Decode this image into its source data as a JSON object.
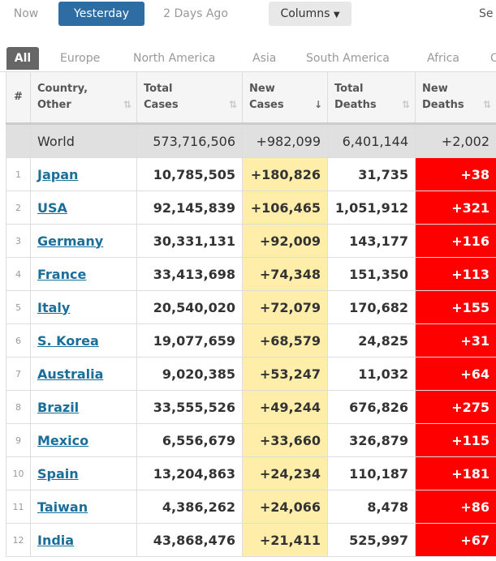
{
  "topbar": {
    "now": "Now",
    "yesterday": "Yesterday",
    "two_days": "2 Days Ago",
    "columns": "Columns",
    "search": "Se"
  },
  "tabs": [
    "All",
    "Europe",
    "North America",
    "Asia",
    "South America",
    "Africa",
    "O"
  ],
  "headers": {
    "index": "#",
    "country": [
      "Country,",
      "Other"
    ],
    "total_cases": [
      "Total",
      "Cases"
    ],
    "new_cases": [
      "New",
      "Cases"
    ],
    "total_deaths": [
      "Total",
      "Deaths"
    ],
    "new_deaths": [
      "New",
      "Deaths"
    ]
  },
  "world": {
    "name": "World",
    "total_cases": "573,716,506",
    "new_cases": "+982,099",
    "total_deaths": "6,401,144",
    "new_deaths": "+2,002"
  },
  "rows": [
    {
      "idx": "1",
      "name": "Japan",
      "total_cases": "10,785,505",
      "new_cases": "+180,826",
      "total_deaths": "31,735",
      "new_deaths": "+38"
    },
    {
      "idx": "2",
      "name": "USA",
      "total_cases": "92,145,839",
      "new_cases": "+106,465",
      "total_deaths": "1,051,912",
      "new_deaths": "+321"
    },
    {
      "idx": "3",
      "name": "Germany",
      "total_cases": "30,331,131",
      "new_cases": "+92,009",
      "total_deaths": "143,177",
      "new_deaths": "+116"
    },
    {
      "idx": "4",
      "name": "France",
      "total_cases": "33,413,698",
      "new_cases": "+74,348",
      "total_deaths": "151,350",
      "new_deaths": "+113"
    },
    {
      "idx": "5",
      "name": "Italy",
      "total_cases": "20,540,020",
      "new_cases": "+72,079",
      "total_deaths": "170,682",
      "new_deaths": "+155"
    },
    {
      "idx": "6",
      "name": "S. Korea",
      "total_cases": "19,077,659",
      "new_cases": "+68,579",
      "total_deaths": "24,825",
      "new_deaths": "+31"
    },
    {
      "idx": "7",
      "name": "Australia",
      "total_cases": "9,020,385",
      "new_cases": "+53,247",
      "total_deaths": "11,032",
      "new_deaths": "+64"
    },
    {
      "idx": "8",
      "name": "Brazil",
      "total_cases": "33,555,526",
      "new_cases": "+49,244",
      "total_deaths": "676,826",
      "new_deaths": "+275"
    },
    {
      "idx": "9",
      "name": "Mexico",
      "total_cases": "6,556,679",
      "new_cases": "+33,660",
      "total_deaths": "326,879",
      "new_deaths": "+115"
    },
    {
      "idx": "10",
      "name": "Spain",
      "total_cases": "13,204,863",
      "new_cases": "+24,234",
      "total_deaths": "110,187",
      "new_deaths": "+181"
    },
    {
      "idx": "11",
      "name": "Taiwan",
      "total_cases": "4,386,262",
      "new_cases": "+24,066",
      "total_deaths": "8,478",
      "new_deaths": "+86"
    },
    {
      "idx": "12",
      "name": "India",
      "total_cases": "43,868,476",
      "new_cases": "+21,411",
      "total_deaths": "525,997",
      "new_deaths": "+67"
    }
  ],
  "colors": {
    "selected_button": "#2e6da4",
    "new_cases_bg": "#ffeeaa",
    "new_deaths_bg": "#ff0000",
    "link": "#1a6e9a"
  }
}
